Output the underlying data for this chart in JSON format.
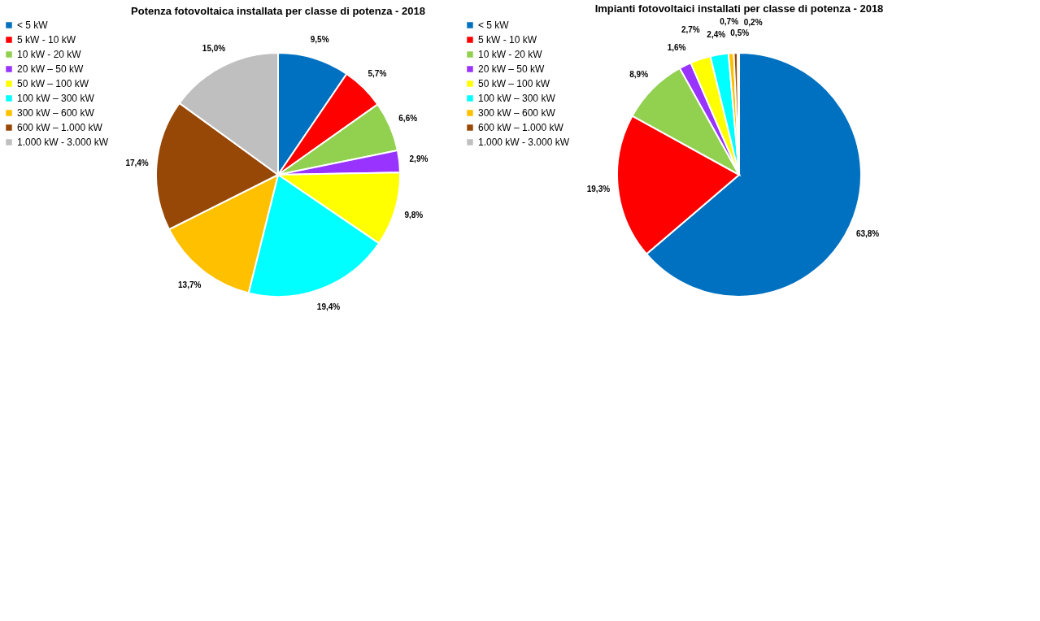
{
  "chart_data": [
    {
      "type": "pie",
      "title": "Potenza fotovoltaica installata per classe di potenza - 2018",
      "legend": "left",
      "categories": [
        "< 5 kW",
        "5 kW - 10 kW",
        "10 kW - 20 kW",
        "20 kW – 50 kW",
        "50 kW – 100 kW",
        "100 kW – 300 kW",
        "300 kW – 600 kW",
        "600 kW – 1.000 kW",
        "1.000 kW - 3.000 kW"
      ],
      "values": [
        9.5,
        5.7,
        6.6,
        2.9,
        9.8,
        19.4,
        13.7,
        17.4,
        15.0
      ],
      "value_labels": [
        "9,5%",
        "5,7%",
        "6,6%",
        "2,9%",
        "9,8%",
        "19,4%",
        "13,7%",
        "17,4%",
        "15,0%"
      ],
      "colors": [
        "#0070c0",
        "#ff0000",
        "#92d050",
        "#9933ff",
        "#ffff00",
        "#00ffff",
        "#ffc000",
        "#974706",
        "#bfbfbf"
      ]
    },
    {
      "type": "pie",
      "title": "Impianti fotovoltaici installati per classe di potenza - 2018",
      "legend": "left",
      "categories": [
        "< 5 kW",
        "5 kW - 10 kW",
        "10 kW - 20 kW",
        "20 kW – 50 kW",
        "50 kW – 100 kW",
        "100 kW – 300 kW",
        "300 kW – 600 kW",
        "600 kW – 1.000 kW",
        "1.000 kW - 3.000 kW"
      ],
      "values": [
        63.8,
        19.3,
        8.9,
        1.6,
        2.7,
        2.4,
        0.7,
        0.5,
        0.2
      ],
      "value_labels": [
        "63,8%",
        "19,3%",
        "8,9%",
        "1,6%",
        "2,7%",
        "2,4%",
        "0,7%",
        "0,5%",
        "0,2%"
      ],
      "colors": [
        "#0070c0",
        "#ff0000",
        "#92d050",
        "#9933ff",
        "#ffff00",
        "#00ffff",
        "#ffc000",
        "#974706",
        "#bfbfbf"
      ]
    }
  ]
}
